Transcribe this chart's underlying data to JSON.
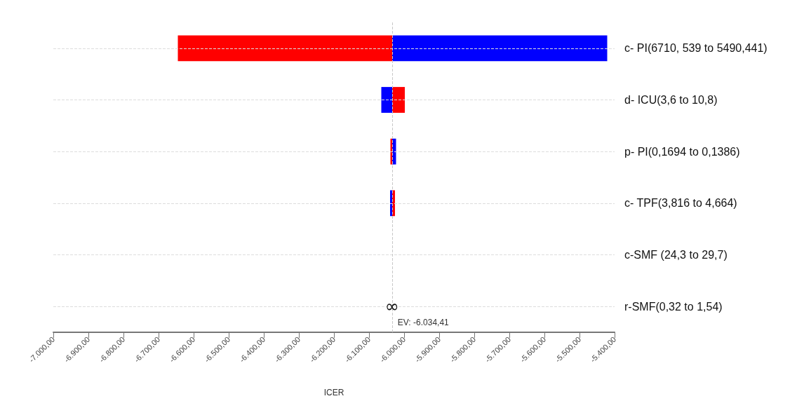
{
  "chart_data": {
    "type": "bar",
    "orientation": "horizontal",
    "xlabel": "ICER",
    "categories": [
      "c- PI(6710, 539 to 5490,441)",
      "d- ICU(3,6 to 10,8)",
      "p- PI(0,1694 to 0,1386)",
      "c- TPF(3,816 to 4,664)",
      "c-SMF (24,3 to 29,7)",
      "r-SMF(0,32 to 1,54)"
    ],
    "series": [
      {
        "color": "#ff0000",
        "base": [
          -6645,
          -6034,
          -6039,
          -6034,
          null,
          null
        ],
        "values": [
          611,
          36,
          5,
          8,
          null,
          null
        ]
      },
      {
        "color": "#0000ff",
        "base": [
          -6034,
          -6065,
          -6034,
          -6040,
          null,
          null
        ],
        "values": [
          613,
          31,
          11,
          6,
          null,
          null
        ]
      }
    ],
    "xlim": [
      -7000,
      -5400
    ],
    "xticks": [
      {
        "value": -7000,
        "label": "-7.000,00"
      },
      {
        "value": -6900,
        "label": "-6.900,00"
      },
      {
        "value": -6800,
        "label": "-6.800,00"
      },
      {
        "value": -6700,
        "label": "-6.700,00"
      },
      {
        "value": -6600,
        "label": "-6.600,00"
      },
      {
        "value": -6500,
        "label": "-6.500,00"
      },
      {
        "value": -6400,
        "label": "-6.400,00"
      },
      {
        "value": -6300,
        "label": "-6.300,00"
      },
      {
        "value": -6200,
        "label": "-6.200,00"
      },
      {
        "value": -6100,
        "label": "-6.100,00"
      },
      {
        "value": -6000,
        "label": "-6.000,00"
      },
      {
        "value": -5900,
        "label": "-5.900,00"
      },
      {
        "value": -5800,
        "label": "-5.800,00"
      },
      {
        "value": -5700,
        "label": "-5.700,00"
      },
      {
        "value": -5600,
        "label": "-5.600,00"
      },
      {
        "value": -5500,
        "label": "-5.500,00"
      },
      {
        "value": -5400,
        "label": "-5.400,00"
      }
    ],
    "ref_lines": [
      {
        "axis": "x",
        "value": -6034.41,
        "label": "EV: -6.034,41",
        "color": "#c8c8c8",
        "line_style": "dashed"
      }
    ],
    "annotations": [
      {
        "text": "∞",
        "x": -6034.41,
        "y": "r-SMF(0,32 to 1,54)"
      }
    ],
    "grid": "y"
  }
}
